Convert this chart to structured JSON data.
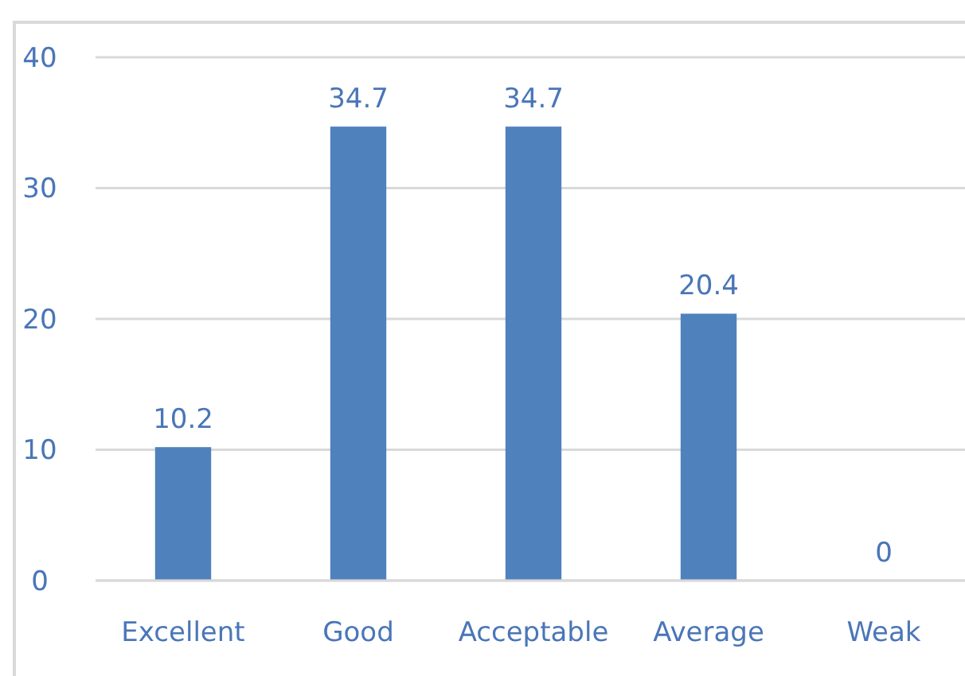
{
  "chart_data": {
    "type": "bar",
    "categories": [
      "Excellent",
      "Good",
      "Acceptable",
      "Average",
      "Weak"
    ],
    "values": [
      10.2,
      34.7,
      34.7,
      20.4,
      0
    ],
    "color": "#4f81bd",
    "ylim": [
      0,
      40
    ],
    "yticks": [
      0,
      10,
      20,
      30,
      40
    ],
    "grid": "y",
    "data_labels": true
  }
}
